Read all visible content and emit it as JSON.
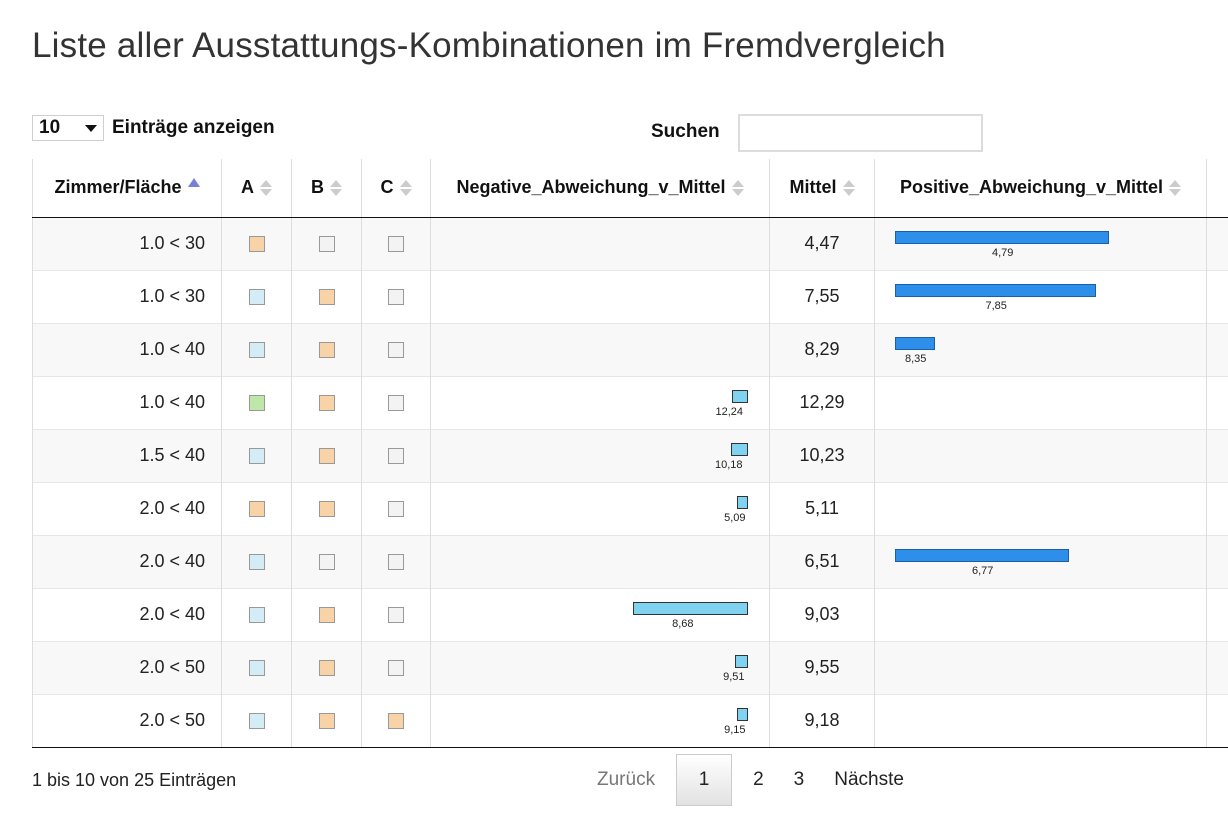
{
  "page": {
    "title": "Liste aller Ausstattungs-Kombinationen im Fremdvergleich"
  },
  "controls": {
    "length_value": "10",
    "length_label": "Einträge anzeigen",
    "search_label": "Suchen",
    "search_value": ""
  },
  "table": {
    "headers": [
      "Zimmer/Fläche",
      "A",
      "B",
      "C",
      "Negative_Abweichung_v_Mittel",
      "Mittel",
      "Positive_Abweichung_v_Mittel"
    ],
    "rows": [
      {
        "zimmer": "1.0 < 30",
        "a": "orange",
        "b": "grey",
        "c": "grey",
        "neg": null,
        "neg_label": "",
        "mittel": "4,47",
        "pos": 4.79,
        "pos_label": "4,79"
      },
      {
        "zimmer": "1.0 < 30",
        "a": "blue",
        "b": "orange",
        "c": "grey",
        "neg": null,
        "neg_label": "",
        "mittel": "7,55",
        "pos": 7.85,
        "pos_label": "7,85"
      },
      {
        "zimmer": "1.0 < 40",
        "a": "blue",
        "b": "orange",
        "c": "grey",
        "neg": null,
        "neg_label": "",
        "mittel": "8,29",
        "pos": 8.35,
        "pos_label": "8,35"
      },
      {
        "zimmer": "1.0 < 40",
        "a": "green",
        "b": "orange",
        "c": "grey",
        "neg": 12.24,
        "neg_label": "12,24",
        "mittel": "12,29",
        "pos": null,
        "pos_label": ""
      },
      {
        "zimmer": "1.5 < 40",
        "a": "blue",
        "b": "orange",
        "c": "grey",
        "neg": 10.18,
        "neg_label": "10,18",
        "mittel": "10,23",
        "pos": null,
        "pos_label": ""
      },
      {
        "zimmer": "2.0 < 40",
        "a": "orange",
        "b": "orange",
        "c": "grey",
        "neg": 5.09,
        "neg_label": "5,09",
        "mittel": "5,11",
        "pos": null,
        "pos_label": ""
      },
      {
        "zimmer": "2.0 < 40",
        "a": "blue",
        "b": "grey",
        "c": "grey",
        "neg": null,
        "neg_label": "",
        "mittel": "6,51",
        "pos": 6.77,
        "pos_label": "6,77"
      },
      {
        "zimmer": "2.0 < 40",
        "a": "blue",
        "b": "orange",
        "c": "grey",
        "neg": 8.68,
        "neg_label": "8,68",
        "mittel": "9,03",
        "pos": null,
        "pos_label": ""
      },
      {
        "zimmer": "2.0 < 50",
        "a": "blue",
        "b": "orange",
        "c": "grey",
        "neg": 9.51,
        "neg_label": "9,51",
        "mittel": "9,55",
        "pos": null,
        "pos_label": ""
      },
      {
        "zimmer": "2.0 < 50",
        "a": "blue",
        "b": "orange",
        "c": "orange",
        "neg": 9.15,
        "neg_label": "9,15",
        "mittel": "9,18",
        "pos": null,
        "pos_label": ""
      }
    ]
  },
  "colors": {
    "orange": "#f8d3a8",
    "blue": "#d3ecf5",
    "green": "#bfe8a8",
    "grey": "#f3f3f3",
    "neg_bar": "#7fd3f0",
    "pos_bar": "#2e8fea",
    "sort_active": "#7a7fd6"
  },
  "footer": {
    "info": "1 bis 10 von 25 Einträgen",
    "prev": "Zurück",
    "pages": [
      "1",
      "2",
      "3"
    ],
    "next": "Nächste"
  }
}
